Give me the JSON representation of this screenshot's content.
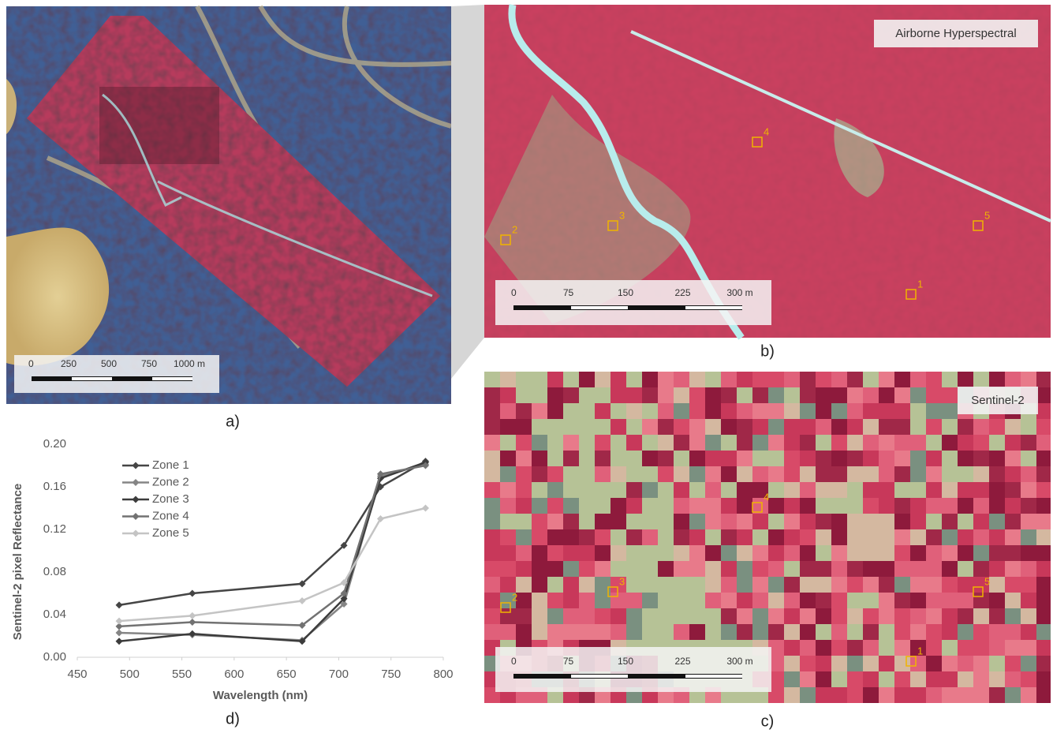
{
  "panels": {
    "a": {
      "label": "a)",
      "scale_labels": [
        "0",
        "250",
        "500",
        "750",
        "1000 m"
      ]
    },
    "b": {
      "label": "b)",
      "caption": "Airborne Hyperspectral",
      "scale_labels": [
        "0",
        "75",
        "150",
        "225",
        "300 m"
      ],
      "zones": [
        "1",
        "2",
        "3",
        "4",
        "5"
      ]
    },
    "c": {
      "label": "c)",
      "caption": "Sentinel-2",
      "scale_labels": [
        "0",
        "75",
        "150",
        "225",
        "300 m"
      ],
      "zones": [
        "1",
        "2",
        "3",
        "4",
        "5"
      ]
    },
    "d": {
      "label": "d)"
    }
  },
  "chart_data": {
    "type": "line",
    "xlabel": "Wavelength (nm)",
    "ylabel": "Sentinel-2 pixel Reflectance",
    "x": [
      490,
      560,
      665,
      705,
      740,
      783
    ],
    "series": [
      {
        "name": "Zone 1",
        "color": "#454545",
        "values": [
          0.049,
          0.06,
          0.069,
          0.105,
          0.16,
          0.184
        ]
      },
      {
        "name": "Zone 2",
        "color": "#858585",
        "values": [
          0.023,
          0.021,
          0.016,
          0.05,
          0.17,
          0.181
        ]
      },
      {
        "name": "Zone 3",
        "color": "#3c3c3c",
        "values": [
          0.015,
          0.022,
          0.015,
          0.055,
          0.168,
          0.183
        ]
      },
      {
        "name": "Zone 4",
        "color": "#727272",
        "values": [
          0.029,
          0.033,
          0.03,
          0.06,
          0.172,
          0.18
        ]
      },
      {
        "name": "Zone 5",
        "color": "#c4c4c4",
        "values": [
          0.034,
          0.039,
          0.053,
          0.07,
          0.13,
          0.14
        ]
      }
    ],
    "xlim": [
      450,
      800
    ],
    "xticks": [
      450,
      500,
      550,
      600,
      650,
      700,
      750,
      800
    ],
    "ylim": [
      0,
      0.2
    ],
    "yticks": [
      {
        "value": 0,
        "label": "0.00"
      },
      0.04,
      0.08,
      0.12,
      0.16,
      {
        "value": 0.2,
        "label": "0.20"
      }
    ],
    "grid": false,
    "legend": "upper-left"
  }
}
